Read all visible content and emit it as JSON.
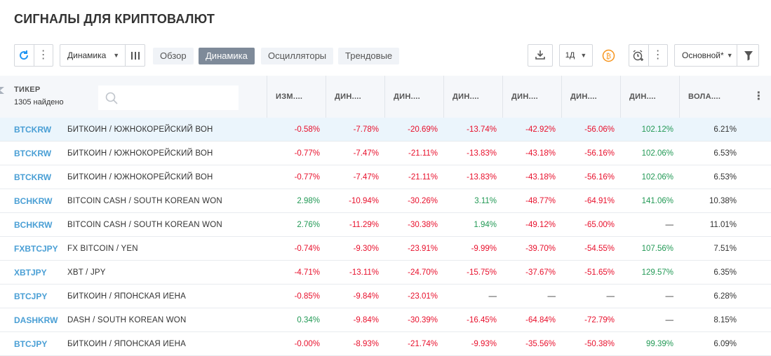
{
  "title": "СИГНАЛЫ ДЛЯ КРИПТОВАЛЮТ",
  "toolbar": {
    "preset_label": "Динамика",
    "tabs": [
      {
        "label": "Обзор",
        "active": false
      },
      {
        "label": "Динамика",
        "active": true
      },
      {
        "label": "Осцилляторы",
        "active": false
      },
      {
        "label": "Трендовые",
        "active": false
      }
    ],
    "interval_label": "1Д",
    "screen_label": "Основной*",
    "accent_color": "#2196f3",
    "coin_color": "#f7931a"
  },
  "table": {
    "ticker_header": "ТИКЕР",
    "found_count": "1305 найдено",
    "search_placeholder": "",
    "columns": [
      "ИЗМ....",
      "ДИН....",
      "ДИН....",
      "ДИН....",
      "ДИН....",
      "ДИН....",
      "ДИН....",
      "ВОЛА...."
    ],
    "rows": [
      {
        "symbol": "BTCKRW",
        "name": "БИТКОИН / ЮЖНОКОРЕЙСКИЙ ВОН",
        "values": [
          "-0.58%",
          "-7.78%",
          "-20.69%",
          "-13.74%",
          "-42.92%",
          "-56.06%",
          "102.12%",
          "6.21%"
        ],
        "highlight": true
      },
      {
        "symbol": "BTCKRW",
        "name": "БИТКОИН / ЮЖНОКОРЕЙСКИЙ ВОН",
        "values": [
          "-0.77%",
          "-7.47%",
          "-21.11%",
          "-13.83%",
          "-43.18%",
          "-56.16%",
          "102.06%",
          "6.53%"
        ]
      },
      {
        "symbol": "BTCKRW",
        "name": "БИТКОИН / ЮЖНОКОРЕЙСКИЙ ВОН",
        "values": [
          "-0.77%",
          "-7.47%",
          "-21.11%",
          "-13.83%",
          "-43.18%",
          "-56.16%",
          "102.06%",
          "6.53%"
        ]
      },
      {
        "symbol": "BCHKRW",
        "name": "BITCOIN CASH / SOUTH KOREAN WON",
        "values": [
          "2.98%",
          "-10.94%",
          "-30.26%",
          "3.11%",
          "-48.77%",
          "-64.91%",
          "141.06%",
          "10.38%"
        ]
      },
      {
        "symbol": "BCHKRW",
        "name": "BITCOIN CASH / SOUTH KOREAN WON",
        "values": [
          "2.76%",
          "-11.29%",
          "-30.38%",
          "1.94%",
          "-49.12%",
          "-65.00%",
          "—",
          "11.01%"
        ]
      },
      {
        "symbol": "FXBTCJPY",
        "name": "FX BITCOIN / YEN",
        "values": [
          "-0.74%",
          "-9.30%",
          "-23.91%",
          "-9.99%",
          "-39.70%",
          "-54.55%",
          "107.56%",
          "7.51%"
        ]
      },
      {
        "symbol": "XBTJPY",
        "name": "XBT / JPY",
        "values": [
          "-4.71%",
          "-13.11%",
          "-24.70%",
          "-15.75%",
          "-37.67%",
          "-51.65%",
          "129.57%",
          "6.35%"
        ]
      },
      {
        "symbol": "BTCJPY",
        "name": "БИТКОИН / ЯПОНСКАЯ ИЕНА",
        "values": [
          "-0.85%",
          "-9.84%",
          "-23.01%",
          "—",
          "—",
          "—",
          "—",
          "6.28%"
        ]
      },
      {
        "symbol": "DASHKRW",
        "name": "DASH / SOUTH KOREAN WON",
        "values": [
          "0.34%",
          "-9.84%",
          "-30.39%",
          "-16.45%",
          "-64.84%",
          "-72.79%",
          "—",
          "8.15%"
        ]
      },
      {
        "symbol": "BTCJPY",
        "name": "БИТКОИН / ЯПОНСКАЯ ИЕНА",
        "values": [
          "-0.00%",
          "-8.93%",
          "-21.74%",
          "-9.93%",
          "-35.56%",
          "-50.38%",
          "99.39%",
          "6.09%"
        ]
      }
    ]
  }
}
